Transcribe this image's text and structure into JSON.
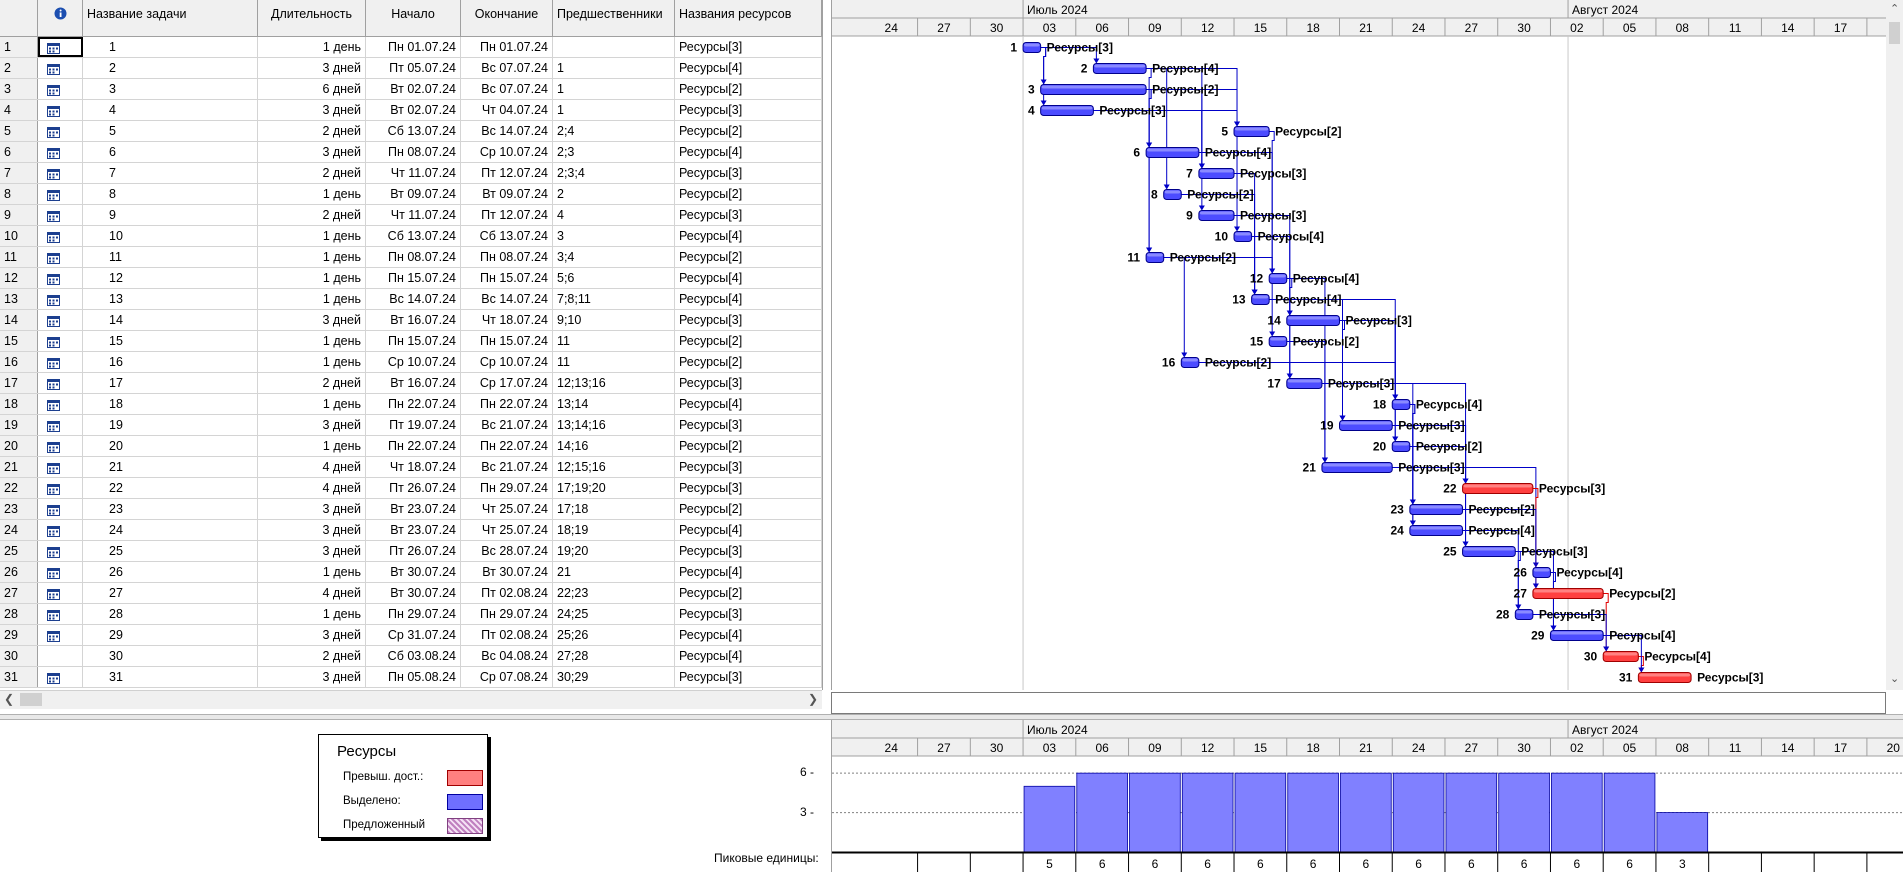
{
  "columns": {
    "info": "",
    "name": "Название задачи",
    "duration": "Длительность",
    "start": "Начало",
    "finish": "Окончание",
    "predecessors": "Предшественники",
    "resources": "Названия ресурсов"
  },
  "tasks": [
    {
      "id": "1",
      "name": "1",
      "duration": "1 день",
      "start": "Пн 01.07.24",
      "finish": "Пн 01.07.24",
      "pred": "",
      "res": "Ресурсы[3]",
      "icon": true,
      "s": 7,
      "d": 1,
      "critical": false
    },
    {
      "id": "2",
      "name": "2",
      "duration": "3 дней",
      "start": "Пт 05.07.24",
      "finish": "Вс 07.07.24",
      "pred": "1",
      "res": "Ресурсы[4]",
      "icon": true,
      "s": 11,
      "d": 3,
      "critical": false
    },
    {
      "id": "3",
      "name": "3",
      "duration": "6 дней",
      "start": "Вт 02.07.24",
      "finish": "Вс 07.07.24",
      "pred": "1",
      "res": "Ресурсы[2]",
      "icon": true,
      "s": 8,
      "d": 6,
      "critical": false
    },
    {
      "id": "4",
      "name": "4",
      "duration": "3 дней",
      "start": "Вт 02.07.24",
      "finish": "Чт 04.07.24",
      "pred": "1",
      "res": "Ресурсы[3]",
      "icon": true,
      "s": 8,
      "d": 3,
      "critical": false
    },
    {
      "id": "5",
      "name": "5",
      "duration": "2 дней",
      "start": "Сб 13.07.24",
      "finish": "Вс 14.07.24",
      "pred": "2;4",
      "res": "Ресурсы[2]",
      "icon": true,
      "s": 19,
      "d": 2,
      "critical": false
    },
    {
      "id": "6",
      "name": "6",
      "duration": "3 дней",
      "start": "Пн 08.07.24",
      "finish": "Ср 10.07.24",
      "pred": "2;3",
      "res": "Ресурсы[4]",
      "icon": true,
      "s": 14,
      "d": 3,
      "critical": false
    },
    {
      "id": "7",
      "name": "7",
      "duration": "2 дней",
      "start": "Чт 11.07.24",
      "finish": "Пт 12.07.24",
      "pred": "2;3;4",
      "res": "Ресурсы[3]",
      "icon": true,
      "s": 17,
      "d": 2,
      "critical": false
    },
    {
      "id": "8",
      "name": "8",
      "duration": "1 день",
      "start": "Вт 09.07.24",
      "finish": "Вт 09.07.24",
      "pred": "2",
      "res": "Ресурсы[2]",
      "icon": true,
      "s": 15,
      "d": 1,
      "critical": false
    },
    {
      "id": "9",
      "name": "9",
      "duration": "2 дней",
      "start": "Чт 11.07.24",
      "finish": "Пт 12.07.24",
      "pred": "4",
      "res": "Ресурсы[3]",
      "icon": true,
      "s": 17,
      "d": 2,
      "critical": false
    },
    {
      "id": "10",
      "name": "10",
      "duration": "1 день",
      "start": "Сб 13.07.24",
      "finish": "Сб 13.07.24",
      "pred": "3",
      "res": "Ресурсы[4]",
      "icon": true,
      "s": 19,
      "d": 1,
      "critical": false
    },
    {
      "id": "11",
      "name": "11",
      "duration": "1 день",
      "start": "Пн 08.07.24",
      "finish": "Пн 08.07.24",
      "pred": "3;4",
      "res": "Ресурсы[2]",
      "icon": true,
      "s": 14,
      "d": 1,
      "critical": false
    },
    {
      "id": "12",
      "name": "12",
      "duration": "1 день",
      "start": "Пн 15.07.24",
      "finish": "Пн 15.07.24",
      "pred": "5;6",
      "res": "Ресурсы[4]",
      "icon": true,
      "s": 21,
      "d": 1,
      "critical": false
    },
    {
      "id": "13",
      "name": "13",
      "duration": "1 день",
      "start": "Вс 14.07.24",
      "finish": "Вс 14.07.24",
      "pred": "7;8;11",
      "res": "Ресурсы[4]",
      "icon": true,
      "s": 20,
      "d": 1,
      "critical": false
    },
    {
      "id": "14",
      "name": "14",
      "duration": "3 дней",
      "start": "Вт 16.07.24",
      "finish": "Чт 18.07.24",
      "pred": "9;10",
      "res": "Ресурсы[3]",
      "icon": true,
      "s": 22,
      "d": 3,
      "critical": false
    },
    {
      "id": "15",
      "name": "15",
      "duration": "1 день",
      "start": "Пн 15.07.24",
      "finish": "Пн 15.07.24",
      "pred": "11",
      "res": "Ресурсы[2]",
      "icon": true,
      "s": 21,
      "d": 1,
      "critical": false
    },
    {
      "id": "16",
      "name": "16",
      "duration": "1 день",
      "start": "Ср 10.07.24",
      "finish": "Ср 10.07.24",
      "pred": "11",
      "res": "Ресурсы[2]",
      "icon": true,
      "s": 16,
      "d": 1,
      "critical": false
    },
    {
      "id": "17",
      "name": "17",
      "duration": "2 дней",
      "start": "Вт 16.07.24",
      "finish": "Ср 17.07.24",
      "pred": "12;13;16",
      "res": "Ресурсы[3]",
      "icon": true,
      "s": 22,
      "d": 2,
      "critical": false
    },
    {
      "id": "18",
      "name": "18",
      "duration": "1 день",
      "start": "Пн 22.07.24",
      "finish": "Пн 22.07.24",
      "pred": "13;14",
      "res": "Ресурсы[4]",
      "icon": true,
      "s": 28,
      "d": 1,
      "critical": false
    },
    {
      "id": "19",
      "name": "19",
      "duration": "3 дней",
      "start": "Пт 19.07.24",
      "finish": "Вс 21.07.24",
      "pred": "13;14;16",
      "res": "Ресурсы[3]",
      "icon": true,
      "s": 25,
      "d": 3,
      "critical": false
    },
    {
      "id": "20",
      "name": "20",
      "duration": "1 день",
      "start": "Пн 22.07.24",
      "finish": "Пн 22.07.24",
      "pred": "14;16",
      "res": "Ресурсы[2]",
      "icon": true,
      "s": 28,
      "d": 1,
      "critical": false
    },
    {
      "id": "21",
      "name": "21",
      "duration": "4 дней",
      "start": "Чт 18.07.24",
      "finish": "Вс 21.07.24",
      "pred": "12;15;16",
      "res": "Ресурсы[3]",
      "icon": true,
      "s": 24,
      "d": 4,
      "critical": false
    },
    {
      "id": "22",
      "name": "22",
      "duration": "4 дней",
      "start": "Пт 26.07.24",
      "finish": "Пн 29.07.24",
      "pred": "17;19;20",
      "res": "Ресурсы[3]",
      "icon": true,
      "s": 32,
      "d": 4,
      "critical": true
    },
    {
      "id": "23",
      "name": "23",
      "duration": "3 дней",
      "start": "Вт 23.07.24",
      "finish": "Чт 25.07.24",
      "pred": "17;18",
      "res": "Ресурсы[2]",
      "icon": true,
      "s": 29,
      "d": 3,
      "critical": false
    },
    {
      "id": "24",
      "name": "24",
      "duration": "3 дней",
      "start": "Вт 23.07.24",
      "finish": "Чт 25.07.24",
      "pred": "18;19",
      "res": "Ресурсы[4]",
      "icon": true,
      "s": 29,
      "d": 3,
      "critical": false
    },
    {
      "id": "25",
      "name": "25",
      "duration": "3 дней",
      "start": "Пт 26.07.24",
      "finish": "Вс 28.07.24",
      "pred": "19;20",
      "res": "Ресурсы[3]",
      "icon": true,
      "s": 32,
      "d": 3,
      "critical": false
    },
    {
      "id": "26",
      "name": "26",
      "duration": "1 день",
      "start": "Вт 30.07.24",
      "finish": "Вт 30.07.24",
      "pred": "21",
      "res": "Ресурсы[4]",
      "icon": true,
      "s": 36,
      "d": 1,
      "critical": false
    },
    {
      "id": "27",
      "name": "27",
      "duration": "4 дней",
      "start": "Вт 30.07.24",
      "finish": "Пт 02.08.24",
      "pred": "22;23",
      "res": "Ресурсы[2]",
      "icon": true,
      "s": 36,
      "d": 4,
      "critical": true
    },
    {
      "id": "28",
      "name": "28",
      "duration": "1 день",
      "start": "Пн 29.07.24",
      "finish": "Пн 29.07.24",
      "pred": "24;25",
      "res": "Ресурсы[3]",
      "icon": true,
      "s": 35,
      "d": 1,
      "critical": false
    },
    {
      "id": "29",
      "name": "29",
      "duration": "3 дней",
      "start": "Ср 31.07.24",
      "finish": "Пт 02.08.24",
      "pred": "25;26",
      "res": "Ресурсы[4]",
      "icon": true,
      "s": 37,
      "d": 3,
      "critical": false
    },
    {
      "id": "30",
      "name": "30",
      "duration": "2 дней",
      "start": "Сб 03.08.24",
      "finish": "Вс 04.08.24",
      "pred": "27;28",
      "res": "Ресурсы[4]",
      "icon": false,
      "s": 40,
      "d": 2,
      "critical": true
    },
    {
      "id": "31",
      "name": "31",
      "duration": "3 дней",
      "start": "Пн 05.08.24",
      "finish": "Ср 07.08.24",
      "pred": "30;29",
      "res": "Ресурсы[3]",
      "icon": true,
      "s": 42,
      "d": 3,
      "critical": true
    }
  ],
  "timescale": {
    "months": [
      {
        "label": "Июль 2024",
        "start_day": 7
      },
      {
        "label": "Август 2024",
        "start_day": 38
      }
    ],
    "ticks": [
      "24",
      "27",
      "30",
      "03",
      "06",
      "09",
      "12",
      "15",
      "18",
      "21",
      "24",
      "27",
      "30",
      "02",
      "05",
      "08",
      "11",
      "14",
      "17",
      "20"
    ],
    "first_tick_day": -2,
    "tick_step_days": 3
  },
  "legend": {
    "title": "Ресурсы",
    "items": [
      {
        "label": "Превыш. дост.:",
        "color": "#ff8080"
      },
      {
        "label": "Выделено:",
        "color": "#6f6fff"
      },
      {
        "label": "Предложенный",
        "color": "#d8a8d8"
      }
    ]
  },
  "peak_label": "Пиковые единицы:",
  "chart_data": {
    "type": "bar",
    "x_unit": "3-day period",
    "categories": [
      "30",
      "03",
      "06",
      "09",
      "12",
      "15",
      "18",
      "21",
      "24",
      "27",
      "30",
      "02",
      "05"
    ],
    "values": [
      5,
      6,
      6,
      6,
      6,
      6,
      6,
      6,
      6,
      6,
      6,
      6,
      3
    ],
    "value_labels": [
      "5",
      "6",
      "6",
      "6",
      "6",
      "6",
      "6",
      "6",
      "6",
      "6",
      "6",
      "6",
      "3"
    ],
    "yticks": [
      {
        "value": 6,
        "label": "6 -"
      },
      {
        "value": 3,
        "label": "3 -"
      }
    ],
    "ylim": [
      0,
      7
    ]
  },
  "colors": {
    "bar_normal": "#4c4cff",
    "bar_critical": "#ff4040",
    "link_normal": "#0000c8",
    "link_critical": "#e00000",
    "histogram": "#8080ff"
  }
}
